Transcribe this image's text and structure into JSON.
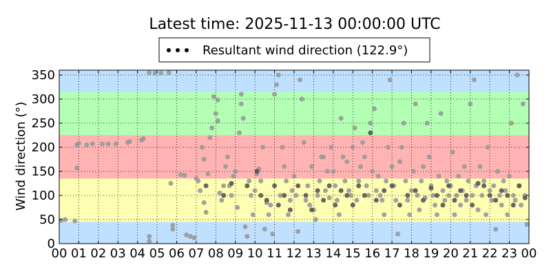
{
  "chart_data": {
    "type": "scatter",
    "title": "Latest time: 2025-11-13 00:00:00 UTC",
    "ylabel": "Wind direction (°)",
    "xlabel": "",
    "legend": {
      "placement": "top-center",
      "label": "Resultant wind direction (122.9°)"
    },
    "grid": true,
    "xlim": [
      0,
      24
    ],
    "ylim": [
      0,
      360
    ],
    "xticks": [
      0,
      1,
      2,
      3,
      4,
      5,
      6,
      7,
      8,
      9,
      10,
      11,
      12,
      13,
      14,
      15,
      16,
      17,
      18,
      19,
      20,
      21,
      22,
      23,
      24
    ],
    "xtick_labels": [
      "00",
      "01",
      "02",
      "03",
      "04",
      "05",
      "06",
      "07",
      "08",
      "09",
      "10",
      "11",
      "12",
      "13",
      "14",
      "15",
      "16",
      "17",
      "18",
      "19",
      "20",
      "21",
      "22",
      "23",
      "00"
    ],
    "yticks": [
      0,
      50,
      100,
      150,
      200,
      250,
      300,
      350
    ],
    "ytick_labels": [
      "0",
      "50",
      "100",
      "150",
      "200",
      "250",
      "300",
      "350"
    ],
    "bands": [
      {
        "from": 0,
        "to": 45,
        "color": "#bfe0ff"
      },
      {
        "from": 45,
        "to": 135,
        "color": "#ffffb3"
      },
      {
        "from": 135,
        "to": 225,
        "color": "#ffb3b3"
      },
      {
        "from": 225,
        "to": 315,
        "color": "#b3ffb3"
      },
      {
        "from": 315,
        "to": 360,
        "color": "#bfe0ff"
      }
    ],
    "series": [
      {
        "name": "Resultant wind direction (122.9°)",
        "marker_color": "#999999",
        "points": [
          [
            0.1,
            48
          ],
          [
            0.3,
            50
          ],
          [
            0.8,
            47
          ],
          [
            0.9,
            205
          ],
          [
            1.0,
            208
          ],
          [
            0.9,
            157
          ],
          [
            1.4,
            205
          ],
          [
            1.7,
            207
          ],
          [
            2.2,
            207
          ],
          [
            2.5,
            207
          ],
          [
            2.9,
            207
          ],
          [
            3.5,
            210
          ],
          [
            3.6,
            212
          ],
          [
            4.2,
            215
          ],
          [
            4.3,
            218
          ],
          [
            4.6,
            15
          ],
          [
            4.6,
            5
          ],
          [
            4.6,
            355
          ],
          [
            4.9,
            354
          ],
          [
            5.2,
            354
          ],
          [
            5.6,
            355
          ],
          [
            5.7,
            125
          ],
          [
            5.8,
            30
          ],
          [
            5.8,
            38
          ],
          [
            6.2,
            143
          ],
          [
            6.4,
            142
          ],
          [
            6.5,
            18
          ],
          [
            6.7,
            15
          ],
          [
            6.9,
            12
          ],
          [
            7.0,
            135
          ],
          [
            7.1,
            130
          ],
          [
            7.2,
            110
          ],
          [
            7.3,
            200
          ],
          [
            7.4,
            175
          ],
          [
            7.4,
            85
          ],
          [
            7.5,
            65
          ],
          [
            7.6,
            145
          ],
          [
            7.7,
            220
          ],
          [
            7.8,
            240
          ],
          [
            7.9,
            305
          ],
          [
            8.0,
            270
          ],
          [
            8.1,
            255
          ],
          [
            8.1,
            298
          ],
          [
            8.2,
            105
          ],
          [
            8.3,
            90
          ],
          [
            8.4,
            120
          ],
          [
            8.5,
            160
          ],
          [
            8.6,
            180
          ],
          [
            8.7,
            120
          ],
          [
            8.8,
            100
          ],
          [
            8.9,
            140
          ],
          [
            9.0,
            150
          ],
          [
            9.1,
            75
          ],
          [
            9.2,
            230
          ],
          [
            9.3,
            310
          ],
          [
            9.3,
            290
          ],
          [
            9.4,
            260
          ],
          [
            9.5,
            35
          ],
          [
            9.6,
            15
          ],
          [
            9.7,
            130
          ],
          [
            9.8,
            100
          ],
          [
            9.9,
            60
          ],
          [
            10.0,
            110
          ],
          [
            10.1,
            145
          ],
          [
            10.2,
            155
          ],
          [
            10.3,
            130
          ],
          [
            10.4,
            200
          ],
          [
            10.5,
            30
          ],
          [
            10.6,
            85
          ],
          [
            10.7,
            60
          ],
          [
            10.8,
            80
          ],
          [
            10.9,
            20
          ],
          [
            11.0,
            310
          ],
          [
            11.1,
            330
          ],
          [
            11.2,
            350
          ],
          [
            11.3,
            100
          ],
          [
            11.4,
            200
          ],
          [
            11.5,
            160
          ],
          [
            11.6,
            130
          ],
          [
            11.7,
            60
          ],
          [
            11.8,
            90
          ],
          [
            11.9,
            110
          ],
          [
            12.0,
            140
          ],
          [
            12.1,
            100
          ],
          [
            12.2,
            25
          ],
          [
            12.3,
            340
          ],
          [
            12.4,
            300
          ],
          [
            12.5,
            210
          ],
          [
            12.6,
            90
          ],
          [
            12.7,
            120
          ],
          [
            12.8,
            80
          ],
          [
            12.9,
            160
          ],
          [
            13.0,
            70
          ],
          [
            13.1,
            50
          ],
          [
            13.2,
            100
          ],
          [
            13.3,
            130
          ],
          [
            13.4,
            180
          ],
          [
            13.5,
            180
          ],
          [
            13.6,
            110
          ],
          [
            13.7,
            150
          ],
          [
            13.8,
            95
          ],
          [
            13.9,
            200
          ],
          [
            14.0,
            150
          ],
          [
            14.1,
            120
          ],
          [
            14.2,
            90
          ],
          [
            14.3,
            60
          ],
          [
            14.4,
            260
          ],
          [
            14.5,
            180
          ],
          [
            14.6,
            130
          ],
          [
            14.7,
            170
          ],
          [
            14.8,
            110
          ],
          [
            14.9,
            100
          ],
          [
            15.0,
            200
          ],
          [
            15.1,
            240
          ],
          [
            15.2,
            90
          ],
          [
            15.3,
            130
          ],
          [
            15.4,
            160
          ],
          [
            15.5,
            210
          ],
          [
            15.6,
            180
          ],
          [
            15.7,
            120
          ],
          [
            15.8,
            100
          ],
          [
            15.9,
            250
          ],
          [
            16.0,
            150
          ],
          [
            16.1,
            280
          ],
          [
            16.2,
            110
          ],
          [
            16.3,
            140
          ],
          [
            16.4,
            100
          ],
          [
            16.5,
            90
          ],
          [
            16.6,
            60
          ],
          [
            16.7,
            130
          ],
          [
            16.8,
            200
          ],
          [
            16.9,
            340
          ],
          [
            17.0,
            160
          ],
          [
            17.1,
            120
          ],
          [
            17.2,
            90
          ],
          [
            17.3,
            20
          ],
          [
            17.4,
            170
          ],
          [
            17.5,
            200
          ],
          [
            17.6,
            250
          ],
          [
            17.7,
            130
          ],
          [
            17.8,
            90
          ],
          [
            17.9,
            60
          ],
          [
            18.0,
            110
          ],
          [
            18.1,
            150
          ],
          [
            18.2,
            290
          ],
          [
            18.3,
            100
          ],
          [
            18.4,
            70
          ],
          [
            18.5,
            130
          ],
          [
            18.6,
            160
          ],
          [
            18.7,
            95
          ],
          [
            18.8,
            250
          ],
          [
            18.9,
            180
          ],
          [
            19.0,
            120
          ],
          [
            19.1,
            100
          ],
          [
            19.2,
            80
          ],
          [
            19.3,
            60
          ],
          [
            19.4,
            140
          ],
          [
            19.5,
            270
          ],
          [
            19.6,
            110
          ],
          [
            19.7,
            90
          ],
          [
            19.8,
            130
          ],
          [
            19.9,
            100
          ],
          [
            20.0,
            120
          ],
          [
            20.1,
            190
          ],
          [
            20.2,
            60
          ],
          [
            20.3,
            100
          ],
          [
            20.4,
            140
          ],
          [
            20.5,
            80
          ],
          [
            20.6,
            110
          ],
          [
            20.7,
            160
          ],
          [
            20.8,
            90
          ],
          [
            20.9,
            130
          ],
          [
            21.0,
            290
          ],
          [
            21.1,
            100
          ],
          [
            21.2,
            340
          ],
          [
            21.3,
            120
          ],
          [
            21.4,
            70
          ],
          [
            21.5,
            160
          ],
          [
            21.6,
            100
          ],
          [
            21.7,
            130
          ],
          [
            21.8,
            60
          ],
          [
            21.9,
            200
          ],
          [
            22.0,
            110
          ],
          [
            22.1,
            90
          ],
          [
            22.2,
            120
          ],
          [
            22.3,
            30
          ],
          [
            22.4,
            150
          ],
          [
            22.5,
            100
          ],
          [
            22.6,
            80
          ],
          [
            22.7,
            130
          ],
          [
            22.8,
            110
          ],
          [
            22.9,
            60
          ],
          [
            23.0,
            140
          ],
          [
            23.1,
            250
          ],
          [
            23.2,
            100
          ],
          [
            23.3,
            90
          ],
          [
            23.4,
            350
          ],
          [
            23.5,
            120
          ],
          [
            23.6,
            80
          ],
          [
            23.7,
            290
          ],
          [
            23.8,
            100
          ],
          [
            23.9,
            40
          ]
        ]
      },
      {
        "name": "",
        "marker_color": "#555555",
        "points": [
          [
            7.5,
            120
          ],
          [
            8.4,
            100
          ],
          [
            8.8,
            125
          ],
          [
            9.6,
            120
          ],
          [
            10.1,
            150
          ],
          [
            10.3,
            100
          ],
          [
            10.6,
            90
          ],
          [
            11.0,
            120
          ],
          [
            11.2,
            80
          ],
          [
            11.5,
            100
          ],
          [
            11.8,
            70
          ],
          [
            12.2,
            120
          ],
          [
            12.6,
            100
          ],
          [
            12.9,
            70
          ],
          [
            13.2,
            110
          ],
          [
            13.5,
            90
          ],
          [
            13.8,
            120
          ],
          [
            14.1,
            80
          ],
          [
            14.4,
            110
          ],
          [
            14.7,
            100
          ],
          [
            15.0,
            80
          ],
          [
            15.3,
            120
          ],
          [
            15.6,
            100
          ],
          [
            15.9,
            230
          ],
          [
            16.2,
            90
          ],
          [
            16.6,
            110
          ],
          [
            17.0,
            120
          ],
          [
            17.4,
            80
          ],
          [
            17.8,
            100
          ],
          [
            18.2,
            110
          ],
          [
            18.6,
            90
          ],
          [
            19.0,
            115
          ],
          [
            19.3,
            100
          ],
          [
            19.6,
            80
          ],
          [
            19.9,
            120
          ],
          [
            20.2,
            90
          ],
          [
            20.5,
            110
          ],
          [
            20.8,
            100
          ],
          [
            21.1,
            80
          ],
          [
            21.4,
            125
          ],
          [
            21.7,
            120
          ],
          [
            22.0,
            100
          ],
          [
            22.3,
            90
          ],
          [
            22.6,
            110
          ],
          [
            22.9,
            100
          ],
          [
            23.2,
            80
          ],
          [
            23.5,
            120
          ],
          [
            23.8,
            95
          ]
        ]
      }
    ]
  }
}
